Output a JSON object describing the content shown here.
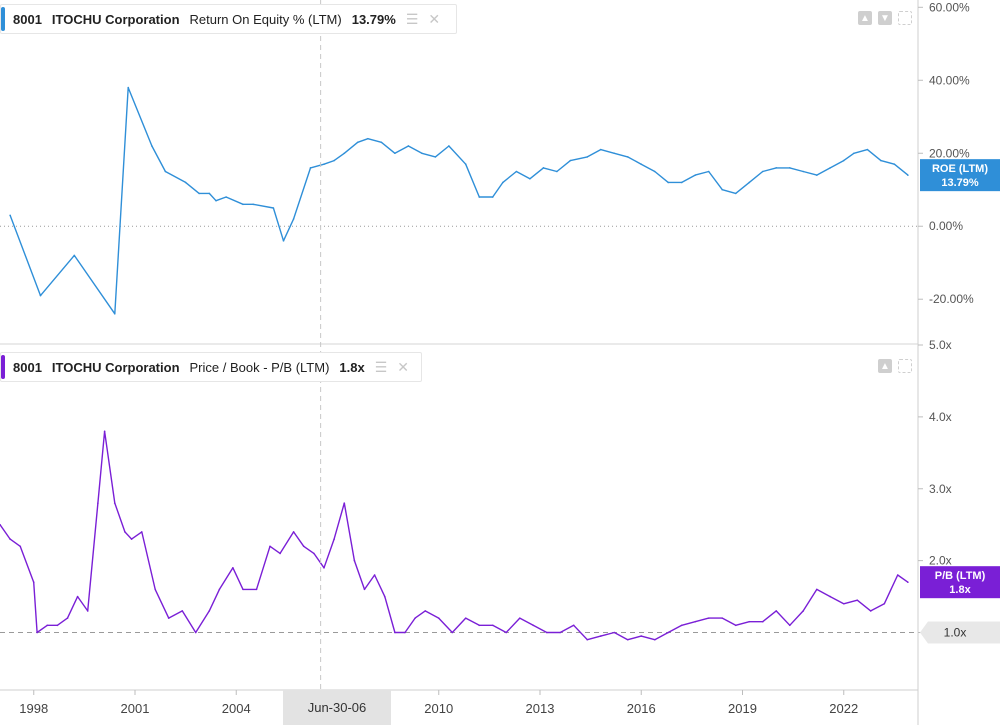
{
  "chart_data": [
    {
      "type": "line",
      "ticker": "8001",
      "company": "ITOCHU Corporation",
      "metric": "Return On Equity % (LTM)",
      "last_value_label": "13.79%",
      "badge": {
        "title": "ROE (LTM)",
        "value": "13.79%"
      },
      "color": "#2f8fd8",
      "yticks": [
        "60.00%",
        "40.00%",
        "20.00%",
        "0.00%",
        "-20.00%"
      ],
      "ytick_values": [
        60,
        40,
        20,
        0,
        -20
      ],
      "ylim": [
        -32,
        62
      ],
      "grid": false,
      "series": [
        {
          "x": [
            1997.3,
            1998.2,
            1999.2,
            2000.4,
            2000.8,
            2001.5,
            2001.9,
            2002.5,
            2002.9,
            2003.2,
            2003.4,
            2003.7,
            2004.2,
            2004.5,
            2005.1,
            2005.4,
            2005.7,
            2006.2,
            2006.6,
            2006.9,
            2007.2,
            2007.6,
            2007.9,
            2008.3,
            2008.7,
            2009.1,
            2009.5,
            2009.9,
            2010.3,
            2010.8,
            2011.2,
            2011.6,
            2011.9,
            2012.3,
            2012.7,
            2013.1,
            2013.5,
            2013.9,
            2014.4,
            2014.8,
            2015.2,
            2015.6,
            2016.0,
            2016.4,
            2016.8,
            2017.2,
            2017.6,
            2018.0,
            2018.4,
            2018.8,
            2019.2,
            2019.6,
            2020.0,
            2020.4,
            2020.8,
            2021.2,
            2021.6,
            2022.0,
            2022.3,
            2022.7,
            2023.1,
            2023.5,
            2023.9
          ],
          "y": [
            3,
            -19,
            -8,
            -24,
            38,
            22,
            15,
            12,
            9,
            9,
            7,
            8,
            6,
            6,
            5,
            -4,
            2,
            16,
            17,
            18,
            20,
            23,
            24,
            23,
            20,
            22,
            20,
            19,
            22,
            17,
            8,
            8,
            12,
            15,
            13,
            16,
            15,
            18,
            19,
            21,
            20,
            19,
            17,
            15,
            12,
            12,
            14,
            15,
            10,
            9,
            12,
            15,
            16,
            16,
            15,
            14,
            16,
            18,
            20,
            21,
            18,
            17,
            14
          ]
        }
      ],
      "crosshair_x": 2006.5
    },
    {
      "type": "line",
      "ticker": "8001",
      "company": "ITOCHU Corporation",
      "metric": "Price / Book - P/B (LTM)",
      "last_value_label": "1.8x",
      "badge": {
        "title": "P/B (LTM)",
        "value": "1.8x"
      },
      "reference_label": "1.0x",
      "color": "#7a1fd6",
      "yticks": [
        "5.0x",
        "4.0x",
        "3.0x",
        "2.0x",
        "1.0x"
      ],
      "ytick_values": [
        5,
        4,
        3,
        2,
        1
      ],
      "ylim": [
        0.2,
        5.0
      ],
      "grid": false,
      "reference_line": 1.0,
      "series": [
        {
          "x": [
            1997.0,
            1997.3,
            1997.6,
            1998.0,
            1998.1,
            1998.4,
            1998.7,
            1999.0,
            1999.3,
            1999.6,
            1999.9,
            2000.1,
            2000.4,
            2000.7,
            2000.9,
            2001.2,
            2001.6,
            2002.0,
            2002.4,
            2002.8,
            2003.2,
            2003.5,
            2003.9,
            2004.2,
            2004.6,
            2005.0,
            2005.3,
            2005.7,
            2006.0,
            2006.3,
            2006.6,
            2006.9,
            2007.2,
            2007.5,
            2007.8,
            2008.1,
            2008.4,
            2008.7,
            2009.0,
            2009.3,
            2009.6,
            2010.0,
            2010.4,
            2010.8,
            2011.2,
            2011.6,
            2012.0,
            2012.4,
            2012.8,
            2013.2,
            2013.6,
            2014.0,
            2014.4,
            2014.8,
            2015.2,
            2015.6,
            2016.0,
            2016.4,
            2016.8,
            2017.2,
            2017.6,
            2018.0,
            2018.4,
            2018.8,
            2019.2,
            2019.6,
            2020.0,
            2020.4,
            2020.8,
            2021.2,
            2021.6,
            2022.0,
            2022.4,
            2022.8,
            2023.2,
            2023.6,
            2023.9
          ],
          "y": [
            2.5,
            2.3,
            2.2,
            1.7,
            1.0,
            1.1,
            1.1,
            1.2,
            1.5,
            1.3,
            2.8,
            3.8,
            2.8,
            2.4,
            2.3,
            2.4,
            1.6,
            1.2,
            1.3,
            1.0,
            1.3,
            1.6,
            1.9,
            1.6,
            1.6,
            2.2,
            2.1,
            2.4,
            2.2,
            2.1,
            1.9,
            2.3,
            2.8,
            2.0,
            1.6,
            1.8,
            1.5,
            1.0,
            1.0,
            1.2,
            1.3,
            1.2,
            1.0,
            1.2,
            1.1,
            1.1,
            1.0,
            1.2,
            1.1,
            1.0,
            1.0,
            1.1,
            0.9,
            0.95,
            1.0,
            0.9,
            0.95,
            0.9,
            1.0,
            1.1,
            1.15,
            1.2,
            1.2,
            1.1,
            1.15,
            1.15,
            1.3,
            1.1,
            1.3,
            1.6,
            1.5,
            1.4,
            1.45,
            1.3,
            1.4,
            1.8,
            1.7
          ]
        }
      ],
      "crosshair_x": 2006.5
    }
  ],
  "xaxis": {
    "ticks": [
      "1998",
      "2001",
      "2004",
      "2010",
      "2013",
      "2016",
      "2019",
      "2022"
    ],
    "tick_values": [
      1998,
      2001,
      2004,
      2010,
      2013,
      2016,
      2019,
      2022
    ],
    "range": [
      1997.0,
      2024.2
    ],
    "crosshair_label": "Jun-30-06"
  }
}
